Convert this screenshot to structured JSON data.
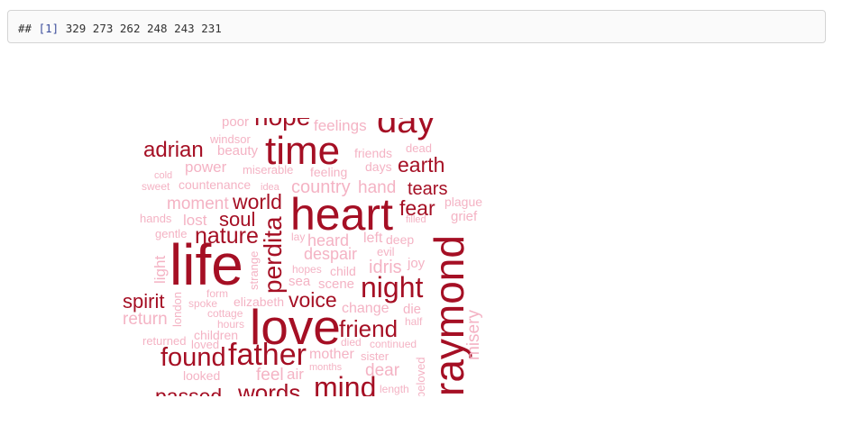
{
  "console": {
    "comment": "##",
    "index": "[1]",
    "values": "329 273 262 248 243 231"
  },
  "colors": {
    "dark": "#a50f24",
    "light": "#f4b3c4",
    "border": "#d4d4d4"
  },
  "wordcloud": {
    "words": {
      "life": "life",
      "love": "love",
      "heart": "heart",
      "raymond": "raymond",
      "time": "time",
      "day": "day",
      "night": "night",
      "father": "father",
      "mind": "mind",
      "found": "found",
      "perdita": "perdita",
      "friend": "friend",
      "adrian": "adrian",
      "earth": "earth",
      "world": "world",
      "nature": "nature",
      "soul": "soul",
      "fear": "fear",
      "tears": "tears",
      "spirit": "spirit",
      "voice": "voice",
      "words": "words",
      "passed": "passed",
      "hope": "hope",
      "feelings": "feelings",
      "poor": "poor",
      "windsor": "windsor",
      "beauty": "beauty",
      "friends": "friends",
      "dead": "dead",
      "power": "power",
      "miserable": "miserable",
      "feeling": "feeling",
      "days": "days",
      "cold": "cold",
      "sweet": "sweet",
      "countenance": "countenance",
      "idea": "idea",
      "country": "country",
      "hand": "hand",
      "moment": "moment",
      "plague": "plague",
      "grief": "grief",
      "filled": "filled",
      "hands": "hands",
      "lost": "lost",
      "gentle": "gentle",
      "heard": "heard",
      "left": "left",
      "deep": "deep",
      "lay": "lay",
      "despair": "despair",
      "evil": "evil",
      "light": "light",
      "strange": "strange",
      "hopes": "hopes",
      "child": "child",
      "idris": "idris",
      "joy": "joy",
      "sea": "sea",
      "scene": "scene",
      "form": "form",
      "spoke": "spoke",
      "elizabeth": "elizabeth",
      "cottage": "cottage",
      "change": "change",
      "die": "die",
      "return": "return",
      "london": "london",
      "hours": "hours",
      "half": "half",
      "children": "children",
      "misery": "misery",
      "returned": "returned",
      "loved": "loved",
      "died": "died",
      "continued": "continued",
      "mother": "mother",
      "sister": "sister",
      "looked": "looked",
      "feel": "feel",
      "air": "air",
      "months": "months",
      "dear": "dear",
      "beloved": "beloved",
      "length": "length"
    }
  }
}
